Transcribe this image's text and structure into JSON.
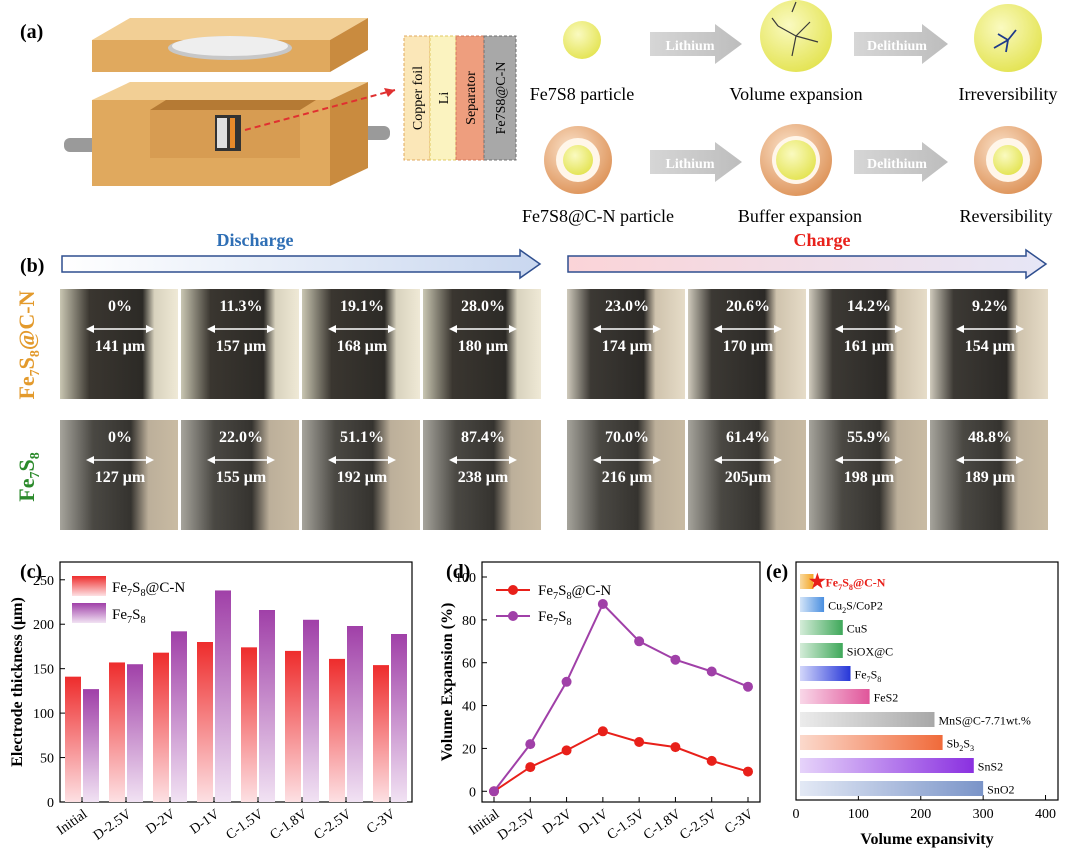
{
  "panel_labels": {
    "a": "(a)",
    "b": "(b)",
    "c": "(c)",
    "d": "(d)",
    "e": "(e)"
  },
  "schematic": {
    "layers": [
      "Copper foil",
      "Li",
      "Separator",
      "Fe7S8@C-N"
    ],
    "arrow_lithium": "Lithium",
    "arrow_delithium": "Delithium",
    "row1": {
      "particle": "Fe7S8 particle",
      "expansion": "Volume expansion",
      "result": "Irreversibility"
    },
    "row2": {
      "particle": "Fe7S8@C-N particle",
      "expansion": "Buffer expansion",
      "result": "Reversibility"
    },
    "colors": {
      "wood": "#e7b46b",
      "ball": "#eeee70",
      "shell": "#e8a77a"
    }
  },
  "microscopy": {
    "discharge_label": "Discharge",
    "charge_label": "Charge",
    "row_labels": [
      "Fe7S8@C-N",
      "Fe7S8"
    ],
    "row1": [
      {
        "pct": "0%",
        "thk": "141 μm"
      },
      {
        "pct": "11.3%",
        "thk": "157 μm"
      },
      {
        "pct": "19.1%",
        "thk": "168 μm"
      },
      {
        "pct": "28.0%",
        "thk": "180 μm"
      },
      {
        "pct": "23.0%",
        "thk": "174 μm"
      },
      {
        "pct": "20.6%",
        "thk": "170 μm"
      },
      {
        "pct": "14.2%",
        "thk": "161 μm"
      },
      {
        "pct": "9.2%",
        "thk": "154 μm"
      }
    ],
    "row2": [
      {
        "pct": "0%",
        "thk": "127 μm"
      },
      {
        "pct": "22.0%",
        "thk": "155 μm"
      },
      {
        "pct": "51.1%",
        "thk": "192 μm"
      },
      {
        "pct": "87.4%",
        "thk": "238 μm"
      },
      {
        "pct": "70.0%",
        "thk": "216 μm"
      },
      {
        "pct": "61.4%",
        "thk": "205μm"
      },
      {
        "pct": "55.9%",
        "thk": "198 μm"
      },
      {
        "pct": "48.8%",
        "thk": "189 μm"
      }
    ],
    "colors": {
      "discharge": "#2f6fb5",
      "charge": "#e8201a",
      "label1": "#e39a2c",
      "label2": "#2b8a2b"
    }
  },
  "chart_data": [
    {
      "type": "bar",
      "categories": [
        "Initial",
        "D-2.5V",
        "D-2V",
        "D-1V",
        "C-1.5V",
        "C-1.8V",
        "C-2.5V",
        "C-3V"
      ],
      "series": [
        {
          "name": "Fe7S8@C-N",
          "values": [
            141,
            157,
            168,
            180,
            174,
            170,
            161,
            154
          ],
          "color": "#ee3b3b"
        },
        {
          "name": "Fe7S8",
          "values": [
            127,
            155,
            192,
            238,
            216,
            205,
            198,
            189
          ],
          "color": "#a040a8"
        }
      ],
      "xlabel": "",
      "ylabel": "Electrode thickness (μm)",
      "ylim": [
        0,
        270
      ],
      "yticks": [
        0,
        50,
        100,
        150,
        200,
        250
      ]
    },
    {
      "type": "line",
      "categories": [
        "Initial",
        "D-2.5V",
        "D-2V",
        "D-1V",
        "C-1.5V",
        "C-1.8V",
        "C-2.5V",
        "C-3V"
      ],
      "series": [
        {
          "name": "Fe7S8@C-N",
          "values": [
            0,
            11.3,
            19.1,
            28.0,
            23.0,
            20.6,
            14.2,
            9.2
          ],
          "color": "#e8201a"
        },
        {
          "name": "Fe7S8",
          "values": [
            0,
            22.0,
            51.1,
            87.4,
            70.0,
            61.4,
            55.9,
            48.8
          ],
          "color": "#a040a8"
        }
      ],
      "xlabel": "",
      "ylabel": "Volume Expansion (%)",
      "ylim": [
        -5,
        107
      ],
      "yticks": [
        0,
        20,
        40,
        60,
        80,
        100
      ]
    },
    {
      "type": "bar",
      "orientation": "horizontal",
      "categories": [
        "Fe7S8@C-N",
        "Cu2S/CoP2",
        "CuS",
        "SiOX@C",
        "Fe7S8",
        "FeS2",
        "MnS@C-7.71wt.%",
        "Sb2S3",
        "SnS2",
        "SnO2"
      ],
      "values": [
        28,
        45,
        75,
        75,
        87.4,
        118,
        222,
        235,
        285,
        300
      ],
      "colors": [
        "#f5a623",
        "#4a8fe0",
        "#3fa85a",
        "#3fa85a",
        "#2636d8",
        "#e0559a",
        "#a8a8a8",
        "#f06a3a",
        "#8a30e0",
        "#7a94c8"
      ],
      "xlabel": "Volume expansivity",
      "xlim": [
        0,
        420
      ],
      "xticks": [
        0,
        100,
        200,
        300,
        400
      ],
      "highlight": "Fe7S8@C-N",
      "highlight_color": "#e8201a"
    }
  ]
}
